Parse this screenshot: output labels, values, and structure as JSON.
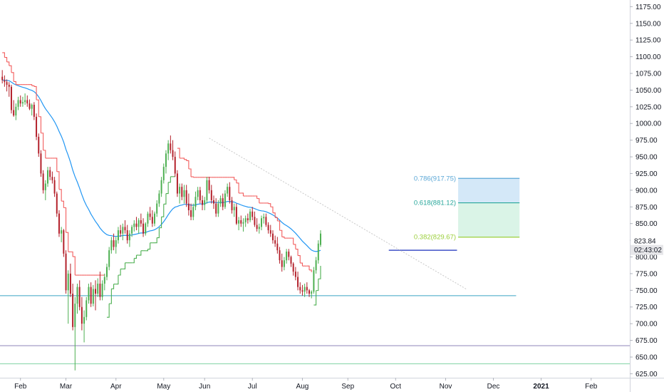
{
  "chart_data": {
    "type": "candlestick",
    "y_axis": {
      "ticks": [
        625,
        650,
        675,
        700,
        725,
        750,
        775,
        800,
        825,
        850,
        875,
        900,
        925,
        950,
        975,
        1000,
        1025,
        1050,
        1075,
        1100,
        1125,
        1150,
        1175
      ],
      "tick_labels": [
        "625.00",
        "650.00",
        "675.00",
        "700.00",
        "725.00",
        "750.00",
        "775.00",
        "800.00",
        "825.00",
        "850.00",
        "875.00",
        "900.00",
        "925.00",
        "950.00",
        "975.00",
        "1000.00",
        "1025.00",
        "1050.00",
        "1075.00",
        "1100.00",
        "1125.00",
        "1150.00",
        "1175.00"
      ],
      "range": [
        619,
        1185
      ]
    },
    "x_axis": {
      "labels": [
        {
          "text": "Feb",
          "i": 8,
          "bold": false
        },
        {
          "text": "Mar",
          "i": 28,
          "bold": false
        },
        {
          "text": "Apr",
          "i": 50,
          "bold": false
        },
        {
          "text": "May",
          "i": 71,
          "bold": false
        },
        {
          "text": "Jun",
          "i": 89,
          "bold": false
        },
        {
          "text": "Jul",
          "i": 110,
          "bold": false
        },
        {
          "text": "Aug",
          "i": 132,
          "bold": false
        },
        {
          "text": "Sep",
          "i": 152,
          "bold": false
        },
        {
          "text": "Oct",
          "i": 173,
          "bold": false
        },
        {
          "text": "Nov",
          "i": 195,
          "bold": false
        },
        {
          "text": "Dec",
          "i": 216,
          "bold": false
        },
        {
          "text": "2021",
          "i": 237,
          "bold": true
        },
        {
          "text": "Feb",
          "i": 259,
          "bold": false
        }
      ],
      "range": [
        -1,
        276
      ]
    },
    "candles": [
      [
        1070,
        1080,
        1060,
        1065
      ],
      [
        1065,
        1072,
        1055,
        1062
      ],
      [
        1062,
        1066,
        1048,
        1058
      ],
      [
        1058,
        1062,
        1040,
        1055
      ],
      [
        1055,
        1058,
        1015,
        1020
      ],
      [
        1020,
        1035,
        1010,
        1012
      ],
      [
        1012,
        1030,
        1005,
        1025
      ],
      [
        1025,
        1040,
        1020,
        1035
      ],
      [
        1035,
        1042,
        1025,
        1030
      ],
      [
        1030,
        1040,
        1025,
        1032
      ],
      [
        1032,
        1045,
        1028,
        1035
      ],
      [
        1035,
        1042,
        1025,
        1030
      ],
      [
        1030,
        1036,
        1020,
        1022
      ],
      [
        1022,
        1030,
        1012,
        1028
      ],
      [
        1028,
        1032,
        1005,
        1010
      ],
      [
        1010,
        1015,
        975,
        980
      ],
      [
        980,
        985,
        950,
        955
      ],
      [
        955,
        960,
        920,
        925
      ],
      [
        925,
        930,
        895,
        900
      ],
      [
        900,
        915,
        885,
        910
      ],
      [
        910,
        935,
        905,
        930
      ],
      [
        930,
        935,
        915,
        920
      ],
      [
        920,
        928,
        910,
        915
      ],
      [
        915,
        920,
        890,
        895
      ],
      [
        895,
        898,
        860,
        865
      ],
      [
        865,
        870,
        830,
        835
      ],
      [
        835,
        845,
        822,
        840
      ],
      [
        840,
        842,
        800,
        805
      ],
      [
        805,
        810,
        745,
        750
      ],
      [
        750,
        780,
        700,
        775
      ],
      [
        775,
        790,
        740,
        745
      ],
      [
        745,
        760,
        690,
        695
      ],
      [
        695,
        740,
        630,
        730
      ],
      [
        730,
        760,
        715,
        755
      ],
      [
        755,
        765,
        720,
        725
      ],
      [
        725,
        740,
        690,
        700
      ],
      [
        700,
        720,
        672,
        710
      ],
      [
        710,
        740,
        705,
        735
      ],
      [
        735,
        760,
        730,
        755
      ],
      [
        755,
        762,
        725,
        730
      ],
      [
        730,
        758,
        726,
        752
      ],
      [
        752,
        765,
        720,
        745
      ],
      [
        745,
        768,
        740,
        760
      ],
      [
        760,
        778,
        735,
        740
      ],
      [
        740,
        765,
        735,
        760
      ],
      [
        760,
        775,
        750,
        770
      ],
      [
        770,
        790,
        765,
        785
      ],
      [
        785,
        815,
        780,
        810
      ],
      [
        810,
        830,
        805,
        825
      ],
      [
        825,
        835,
        810,
        815
      ],
      [
        815,
        830,
        805,
        825
      ],
      [
        825,
        845,
        820,
        840
      ],
      [
        840,
        848,
        830,
        835
      ],
      [
        835,
        850,
        825,
        845
      ],
      [
        845,
        855,
        835,
        840
      ],
      [
        840,
        848,
        820,
        825
      ],
      [
        825,
        840,
        815,
        835
      ],
      [
        835,
        848,
        830,
        845
      ],
      [
        845,
        855,
        838,
        850
      ],
      [
        850,
        860,
        840,
        845
      ],
      [
        845,
        858,
        835,
        855
      ],
      [
        855,
        865,
        845,
        850
      ],
      [
        850,
        858,
        830,
        835
      ],
      [
        835,
        852,
        832,
        850
      ],
      [
        850,
        868,
        845,
        865
      ],
      [
        865,
        875,
        855,
        860
      ],
      [
        860,
        870,
        845,
        850
      ],
      [
        850,
        868,
        846,
        865
      ],
      [
        865,
        885,
        860,
        880
      ],
      [
        880,
        900,
        875,
        895
      ],
      [
        895,
        920,
        890,
        915
      ],
      [
        915,
        940,
        910,
        935
      ],
      [
        935,
        960,
        925,
        955
      ],
      [
        955,
        975,
        945,
        970
      ],
      [
        970,
        982,
        955,
        960
      ],
      [
        960,
        975,
        945,
        950
      ],
      [
        950,
        958,
        920,
        925
      ],
      [
        925,
        930,
        890,
        895
      ],
      [
        895,
        910,
        880,
        905
      ],
      [
        905,
        910,
        885,
        890
      ],
      [
        890,
        908,
        880,
        900
      ],
      [
        900,
        908,
        875,
        880
      ],
      [
        880,
        895,
        862,
        870
      ],
      [
        870,
        880,
        855,
        860
      ],
      [
        860,
        880,
        855,
        875
      ],
      [
        875,
        898,
        870,
        890
      ],
      [
        890,
        905,
        885,
        900
      ],
      [
        900,
        905,
        880,
        885
      ],
      [
        885,
        892,
        870,
        878
      ],
      [
        878,
        890,
        870,
        885
      ],
      [
        885,
        920,
        880,
        915
      ],
      [
        915,
        920,
        895,
        900
      ],
      [
        900,
        908,
        880,
        885
      ],
      [
        885,
        892,
        872,
        880
      ],
      [
        880,
        888,
        860,
        865
      ],
      [
        865,
        885,
        860,
        880
      ],
      [
        880,
        892,
        875,
        888
      ],
      [
        888,
        895,
        870,
        875
      ],
      [
        875,
        900,
        872,
        895
      ],
      [
        895,
        910,
        890,
        905
      ],
      [
        905,
        912,
        880,
        885
      ],
      [
        885,
        890,
        865,
        870
      ],
      [
        870,
        880,
        860,
        875
      ],
      [
        875,
        880,
        848,
        850
      ],
      [
        850,
        860,
        840,
        855
      ],
      [
        855,
        862,
        845,
        850
      ],
      [
        850,
        858,
        838,
        852
      ],
      [
        852,
        862,
        845,
        858
      ],
      [
        858,
        865,
        850,
        855
      ],
      [
        855,
        872,
        852,
        868
      ],
      [
        868,
        875,
        855,
        860
      ],
      [
        860,
        868,
        845,
        848
      ],
      [
        848,
        858,
        838,
        842
      ],
      [
        842,
        850,
        835,
        845
      ],
      [
        845,
        862,
        840,
        858
      ],
      [
        858,
        865,
        850,
        860
      ],
      [
        860,
        865,
        845,
        848
      ],
      [
        848,
        852,
        835,
        840
      ],
      [
        840,
        848,
        830,
        835
      ],
      [
        835,
        840,
        820,
        825
      ],
      [
        825,
        832,
        815,
        820
      ],
      [
        820,
        830,
        805,
        810
      ],
      [
        810,
        815,
        790,
        795
      ],
      [
        795,
        805,
        778,
        785
      ],
      [
        785,
        800,
        780,
        795
      ],
      [
        795,
        812,
        790,
        808
      ],
      [
        808,
        812,
        795,
        800
      ],
      [
        800,
        802,
        785,
        790
      ],
      [
        790,
        792,
        772,
        778
      ],
      [
        778,
        785,
        765,
        770
      ],
      [
        770,
        778,
        750,
        755
      ],
      [
        755,
        762,
        745,
        750
      ],
      [
        750,
        758,
        742,
        748
      ],
      [
        748,
        760,
        740,
        755
      ],
      [
        755,
        762,
        745,
        750
      ],
      [
        750,
        752,
        740,
        745
      ],
      [
        745,
        750,
        738,
        748
      ],
      [
        748,
        785,
        745,
        780
      ],
      [
        780,
        800,
        775,
        795
      ],
      [
        795,
        825,
        790,
        820
      ],
      [
        818,
        840,
        815,
        835
      ]
    ],
    "candle_layout": {
      "first_i": 0,
      "step": 1,
      "downsample_note": ""
    },
    "price_badges": [
      {
        "label": "823.84",
        "value": 823.84,
        "bg": "#ffffff"
      },
      {
        "label": "02:43:02",
        "value": 810.5,
        "bg": "#e6e6e9"
      }
    ],
    "fib_levels": [
      {
        "label": "0.786(917.75)",
        "value": 917.75,
        "color": "#5aa7d6"
      },
      {
        "label": "0.618(881.12)",
        "value": 881.12,
        "color": "#26a69a"
      },
      {
        "label": "0.382(829.67)",
        "value": 829.67,
        "color": "#9bcf3b"
      }
    ],
    "fib_zones": [
      {
        "from": 917.75,
        "to": 881.12,
        "color": "#cfe6f7"
      },
      {
        "from": 881.12,
        "to": 829.67,
        "color": "#d6f3e4"
      }
    ],
    "horizontal_lines": [
      {
        "value": 742,
        "color": "#3ba3c4",
        "i_from": -1,
        "i_to": 226
      },
      {
        "value": 667,
        "color": "#8f86b8",
        "i_from": -1,
        "i_to": 276
      },
      {
        "value": 640,
        "color": "#7ed3a2",
        "i_from": -1,
        "i_to": 276
      },
      {
        "value": 810,
        "color": "#3f51c7",
        "i_from": 170,
        "i_to": 200
      }
    ],
    "colors": {
      "up": "#4caf50",
      "down": "#b3202a",
      "ema": "#2196f3",
      "supertrend_down": "#f25c5c",
      "supertrend_up": "#4caf50",
      "trendline": "#c8c8c8",
      "axis_text": "#131722"
    }
  }
}
